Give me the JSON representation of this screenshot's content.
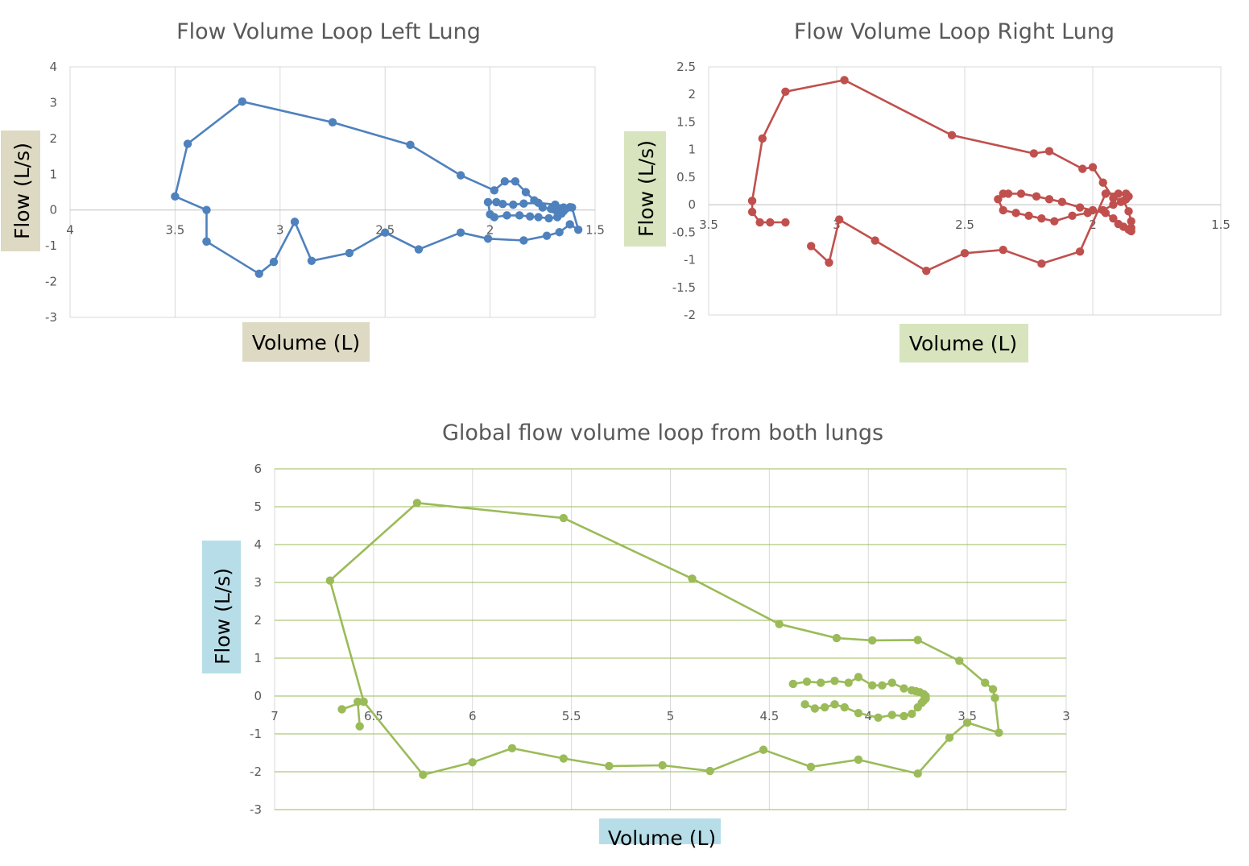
{
  "chart_data": [
    {
      "type": "scatter",
      "title": "Flow Volume Loop Left Lung",
      "xlabel": "Volume (L)",
      "ylabel": "Flow (L/s)",
      "xlim": [
        4,
        1.5
      ],
      "ylim": [
        -3,
        4
      ],
      "x_ticks": [
        "4",
        "3.5",
        "3",
        "2.5",
        "2",
        "1.5"
      ],
      "y_ticks": [
        "4",
        "3",
        "2",
        "1",
        "0",
        "-1",
        "-2",
        "-3"
      ],
      "x_reversed": true,
      "grid": {
        "vertical": true,
        "horizontal": false
      },
      "colors": {
        "series": "#4F81BD",
        "grid": "#D9D9D9",
        "xlabel_box": "#DDD9C3",
        "ylabel_box": "#DDD9C3"
      },
      "series": [
        {
          "x": [
            3.35,
            3.35,
            3.5,
            3.44,
            3.18,
            2.75,
            2.38,
            2.14,
            1.98,
            1.93,
            1.88,
            1.83,
            1.79,
            1.75,
            1.71,
            1.69,
            1.68,
            1.67,
            1.66,
            1.65,
            1.64,
            1.65,
            1.66,
            1.68,
            1.72,
            1.77,
            1.81,
            1.86,
            1.92,
            1.98,
            2.0,
            2.01,
            1.97,
            1.94,
            1.89,
            1.84,
            1.77,
            1.69,
            1.62,
            1.61,
            1.58,
            1.62,
            1.67,
            1.73,
            1.84,
            2.01,
            2.14,
            2.34,
            2.5,
            2.67,
            2.85,
            2.93,
            3.03,
            3.1,
            3.35
          ],
          "y": [
            -0.88,
            0.0,
            0.38,
            1.85,
            3.03,
            2.45,
            1.82,
            0.97,
            0.55,
            0.8,
            0.8,
            0.5,
            0.27,
            0.07,
            0.03,
            0.0,
            -0.03,
            -0.05,
            0.05,
            0.07,
            0.03,
            -0.03,
            -0.1,
            -0.2,
            -0.23,
            -0.2,
            -0.18,
            -0.15,
            -0.15,
            -0.2,
            -0.12,
            0.22,
            0.22,
            0.17,
            0.15,
            0.18,
            0.2,
            0.15,
            0.08,
            0.07,
            -0.55,
            -0.4,
            -0.62,
            -0.72,
            -0.85,
            -0.8,
            -0.63,
            -1.1,
            -0.63,
            -1.2,
            -1.42,
            -0.33,
            -1.45,
            -1.78,
            -0.88
          ]
        }
      ]
    },
    {
      "type": "scatter",
      "title": "Flow Volume Loop Right Lung",
      "xlabel": "Volume (L)",
      "ylabel": "Flow (L/s)",
      "xlim": [
        3.5,
        1.5
      ],
      "ylim": [
        -2,
        2.5
      ],
      "x_ticks": [
        "3.5",
        "3",
        "2.5",
        "2",
        "1.5"
      ],
      "y_ticks": [
        "2.5",
        "2",
        "1.5",
        "1",
        "0.5",
        "0",
        "-0.5",
        "-1",
        "-1.5",
        "-2"
      ],
      "x_reversed": true,
      "grid": {
        "vertical": true,
        "horizontal": false
      },
      "colors": {
        "series": "#C0504D",
        "grid": "#D9D9D9",
        "xlabel_box": "#D7E4BD",
        "ylabel_box": "#D7E4BD"
      },
      "series": [
        {
          "x": [
            3.2,
            3.26,
            3.3,
            3.33,
            3.33,
            3.29,
            3.2,
            2.97,
            2.55,
            2.23,
            2.17,
            2.04,
            2.0,
            1.96,
            1.92,
            1.88,
            1.86,
            1.85,
            1.85,
            1.85,
            1.86,
            1.88,
            1.9,
            1.92,
            1.95,
            2.0,
            2.05,
            2.12,
            2.17,
            2.22,
            2.28,
            2.33,
            2.35,
            2.37,
            2.35,
            2.3,
            2.25,
            2.2,
            2.15,
            2.08,
            2.02,
            1.96,
            1.92,
            1.89,
            1.87,
            1.86,
            1.87,
            1.9,
            1.95,
            2.05,
            2.2,
            2.35,
            2.5,
            2.65,
            2.85,
            2.99,
            3.03,
            3.1
          ],
          "y": [
            -0.32,
            -0.32,
            -0.32,
            -0.13,
            0.07,
            1.2,
            2.05,
            2.26,
            1.26,
            0.93,
            0.97,
            0.65,
            0.68,
            0.4,
            0.12,
            0.07,
            -0.12,
            -0.3,
            -0.42,
            -0.48,
            -0.45,
            -0.4,
            -0.35,
            -0.25,
            -0.15,
            -0.1,
            -0.05,
            0.05,
            0.1,
            0.15,
            0.2,
            0.2,
            0.2,
            0.1,
            -0.1,
            -0.15,
            -0.2,
            -0.25,
            -0.3,
            -0.2,
            -0.15,
            -0.1,
            0.0,
            0.05,
            0.1,
            0.15,
            0.2,
            0.2,
            0.2,
            -0.85,
            -1.07,
            -0.82,
            -0.88,
            -1.2,
            -0.65,
            -0.27,
            -1.05,
            -0.75
          ]
        }
      ]
    },
    {
      "type": "scatter",
      "title": "Global flow volume loop from both lungs",
      "xlabel": "Volume (L)",
      "ylabel": "Flow (L/s)",
      "xlim": [
        7,
        3
      ],
      "ylim": [
        -3,
        6
      ],
      "x_ticks": [
        "7",
        "6.5",
        "6",
        "5.5",
        "5",
        "4.5",
        "4",
        "3.5",
        "3"
      ],
      "y_ticks": [
        "6",
        "5",
        "4",
        "3",
        "2",
        "1",
        "0",
        "-1",
        "-2",
        "-3"
      ],
      "x_reversed": true,
      "grid": {
        "vertical": true,
        "horizontal": true
      },
      "colors": {
        "series": "#9BBB59",
        "grid_vertical": "#D9D9D9",
        "grid_horizontal": "#9BBB59",
        "xlabel_box": "#B7DEE8",
        "ylabel_box": "#B7DEE8"
      },
      "series": [
        {
          "x": [
            6.57,
            6.58,
            6.55,
            6.72,
            6.28,
            5.54,
            4.89,
            4.45,
            4.16,
            3.98,
            3.75,
            3.54,
            3.41,
            3.37,
            3.36,
            3.34,
            3.5,
            3.59,
            3.75,
            4.05,
            4.29,
            4.53,
            4.8,
            5.04,
            5.31,
            5.54,
            5.8,
            6.0,
            6.25,
            6.55,
            6.66
          ],
          "y": [
            -0.8,
            -0.15,
            -0.15,
            3.05,
            5.1,
            4.7,
            3.1,
            1.9,
            1.53,
            1.47,
            1.48,
            0.93,
            0.35,
            0.18,
            -0.05,
            -0.97,
            -0.7,
            -1.1,
            -2.05,
            -1.68,
            -1.87,
            -1.42,
            -1.98,
            -1.83,
            -1.85,
            -1.65,
            -1.38,
            -1.75,
            -2.08,
            -0.15,
            -0.35
          ]
        },
        {
          "x": [
            4.38,
            4.31,
            4.24,
            4.17,
            4.1,
            4.05,
            3.98,
            3.93,
            3.88,
            3.82,
            3.78,
            3.76,
            3.74,
            3.72,
            3.71,
            3.71,
            3.72,
            3.73,
            3.75,
            3.78,
            3.82,
            3.88,
            3.95,
            4.05,
            4.12,
            4.17,
            4.22,
            4.27,
            4.32
          ],
          "y": [
            0.32,
            0.38,
            0.35,
            0.4,
            0.35,
            0.5,
            0.28,
            0.28,
            0.35,
            0.2,
            0.15,
            0.13,
            0.1,
            0.05,
            0.0,
            -0.07,
            -0.12,
            -0.18,
            -0.3,
            -0.47,
            -0.53,
            -0.5,
            -0.57,
            -0.45,
            -0.3,
            -0.22,
            -0.3,
            -0.33,
            -0.22
          ]
        }
      ]
    }
  ]
}
